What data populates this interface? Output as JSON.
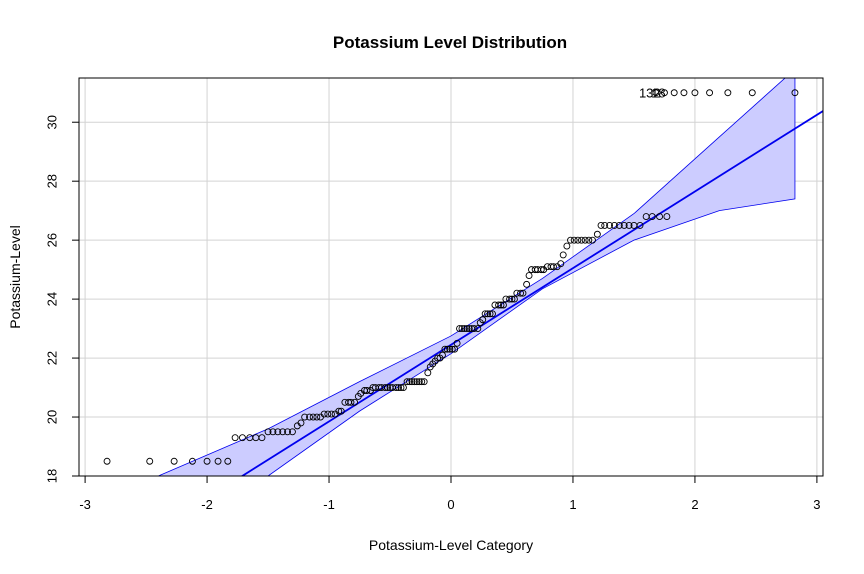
{
  "chart_data": {
    "type": "scatter",
    "title": "Potassium Level Distribution",
    "xlabel": "Potassium-Level Category",
    "ylabel": "Potassium-Level",
    "xlim": [
      -3.05,
      3.05
    ],
    "ylim": [
      18,
      31.5
    ],
    "x_ticks": [
      -3,
      -2,
      -1,
      0,
      1,
      2,
      3
    ],
    "y_ticks": [
      18,
      20,
      22,
      24,
      26,
      28,
      30
    ],
    "x_tick_labels": [
      "-3",
      "-2",
      "-1",
      "0",
      "1",
      "2",
      "3"
    ],
    "y_tick_labels": [
      "18",
      "20",
      "22",
      "24",
      "26",
      "28",
      "30"
    ],
    "grid": true,
    "reference_line": {
      "intercept": 22.45,
      "slope": 2.6,
      "color": "#0000ee"
    },
    "confidence_band": {
      "color": "#ccccff",
      "x": [
        -2.4,
        -1.5,
        -0.75,
        0,
        0.75,
        1.5,
        2.2,
        2.82
      ],
      "lower": [
        15.0,
        18.0,
        20.2,
        22.15,
        24.35,
        26.0,
        27.0,
        27.4
      ],
      "upper": [
        18.0,
        19.6,
        21.2,
        22.75,
        24.7,
        26.9,
        29.5,
        31.8
      ]
    },
    "series": [
      {
        "x": [
          -2.82,
          -2.47,
          -2.27,
          -2.12,
          -2.0,
          -1.91,
          -1.83,
          -1.77,
          -1.71,
          -1.65,
          -1.6,
          -1.55,
          -1.5,
          -1.46,
          -1.42,
          -1.38,
          -1.34,
          -1.3,
          -1.26,
          -1.23,
          -1.2,
          -1.16,
          -1.13,
          -1.1,
          -1.07,
          -1.04,
          -1.01,
          -0.98,
          -0.95,
          -0.92,
          -0.9,
          -0.87,
          -0.84,
          -0.82,
          -0.79,
          -0.76,
          -0.74,
          -0.71,
          -0.69,
          -0.66,
          -0.64,
          -0.62,
          -0.59,
          -0.57,
          -0.54,
          -0.52,
          -0.5,
          -0.48,
          -0.45,
          -0.43,
          -0.41,
          -0.39,
          -0.36,
          -0.34,
          -0.32,
          -0.3,
          -0.28,
          -0.26,
          -0.24,
          -0.22,
          -0.19,
          -0.17,
          -0.15,
          -0.13,
          -0.11,
          -0.09,
          -0.07,
          -0.05,
          -0.03,
          -0.01,
          0.01,
          0.03,
          0.05,
          0.07,
          0.09,
          0.11,
          0.13,
          0.15,
          0.17,
          0.19,
          0.22,
          0.24,
          0.26,
          0.28,
          0.3,
          0.32,
          0.34,
          0.36,
          0.39,
          0.41,
          0.43,
          0.45,
          0.48,
          0.5,
          0.52,
          0.54,
          0.57,
          0.59,
          0.62,
          0.64,
          0.66,
          0.69,
          0.71,
          0.74,
          0.76,
          0.79,
          0.82,
          0.84,
          0.87,
          0.9,
          0.92,
          0.95,
          0.98,
          1.01,
          1.04,
          1.07,
          1.1,
          1.13,
          1.16,
          1.2,
          1.23,
          1.26,
          1.3,
          1.34,
          1.38,
          1.42,
          1.46,
          1.5,
          1.55,
          1.6,
          1.65,
          1.71,
          1.77,
          1.68,
          1.75,
          1.83,
          1.91,
          2.0,
          2.12,
          2.27,
          2.47,
          2.82
        ],
        "y": [
          18.5,
          18.5,
          18.5,
          18.5,
          18.5,
          18.5,
          18.5,
          19.3,
          19.3,
          19.3,
          19.3,
          19.3,
          19.5,
          19.5,
          19.5,
          19.5,
          19.5,
          19.5,
          19.7,
          19.8,
          20.0,
          20.0,
          20.0,
          20.0,
          20.0,
          20.1,
          20.1,
          20.1,
          20.1,
          20.2,
          20.2,
          20.5,
          20.5,
          20.5,
          20.5,
          20.7,
          20.8,
          20.9,
          20.9,
          20.9,
          21.0,
          21.0,
          21.0,
          21.0,
          21.0,
          21.0,
          21.0,
          21.0,
          21.0,
          21.0,
          21.0,
          21.0,
          21.2,
          21.2,
          21.2,
          21.2,
          21.2,
          21.2,
          21.2,
          21.2,
          21.5,
          21.7,
          21.8,
          21.9,
          22.0,
          22.0,
          22.1,
          22.3,
          22.3,
          22.3,
          22.3,
          22.3,
          22.5,
          23.0,
          23.0,
          23.0,
          23.0,
          23.0,
          23.0,
          23.0,
          23.0,
          23.2,
          23.3,
          23.5,
          23.5,
          23.5,
          23.5,
          23.8,
          23.8,
          23.8,
          23.8,
          24.0,
          24.0,
          24.0,
          24.0,
          24.2,
          24.2,
          24.2,
          24.5,
          24.8,
          25.0,
          25.0,
          25.0,
          25.0,
          25.0,
          25.1,
          25.1,
          25.1,
          25.1,
          25.2,
          25.5,
          25.8,
          26.0,
          26.0,
          26.0,
          26.0,
          26.0,
          26.0,
          26.0,
          26.2,
          26.5,
          26.5,
          26.5,
          26.5,
          26.5,
          26.5,
          26.5,
          26.5,
          26.5,
          26.8,
          26.8,
          26.8,
          26.8,
          31.0,
          31.0,
          31.0,
          31.0,
          31.0,
          31.0,
          31.0,
          31.0,
          31.0
        ]
      }
    ],
    "annotations": [
      {
        "text": "132",
        "x": 1.63,
        "y": 31.0
      },
      {
        "text": "18",
        "x": 1.7,
        "y": 31.0
      }
    ]
  }
}
